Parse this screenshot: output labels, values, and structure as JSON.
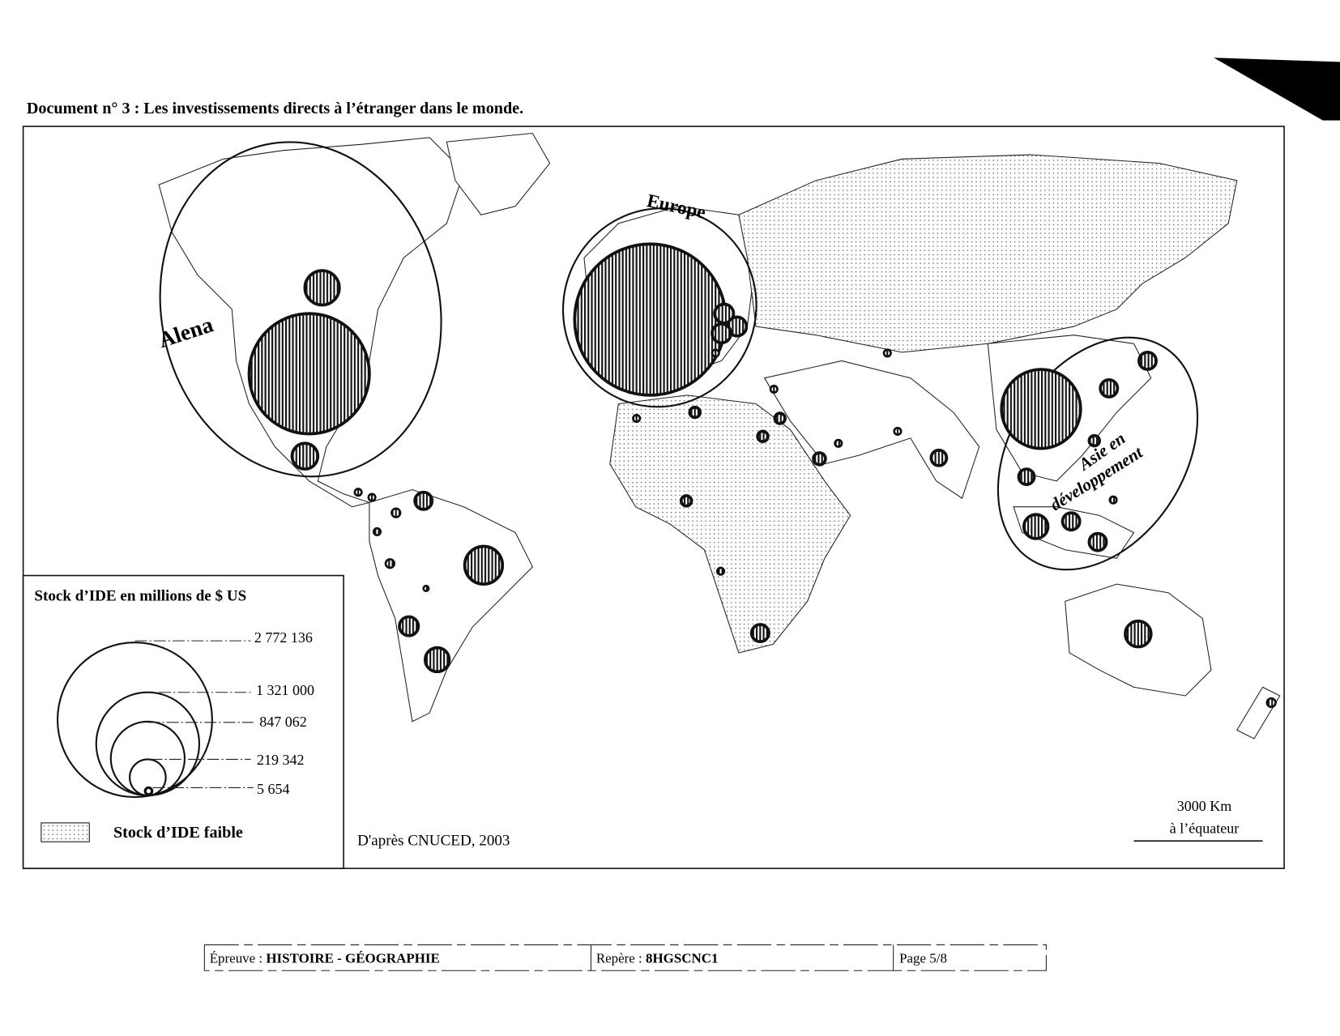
{
  "document": {
    "title": "Document n° 3 : Les investissements directs à l’étranger dans  le monde.",
    "source": "D'après  CNUCED,  2003"
  },
  "map": {
    "region_labels": [
      "Alena",
      "Europe",
      "Asie en",
      "développement"
    ],
    "scale": {
      "distance": "3000 Km",
      "note": "à l’équateur"
    },
    "colors": {
      "ink": "#111111",
      "background": "#ffffff"
    }
  },
  "legend": {
    "title": "Stock d’IDE en millions de $ US",
    "circle_values": [
      "2 772 136",
      "1 321 000",
      "847 062",
      "219 342",
      "5 654"
    ],
    "pattern_label": "Stock d’IDE faible"
  },
  "footer": {
    "epreuve_label": "Épreuve : ",
    "epreuve_value": "HISTOIRE - GÉOGRAPHIE",
    "repere_label": "Repère : ",
    "repere_value": "8HGSCNC1",
    "page": "Page 5/8"
  }
}
